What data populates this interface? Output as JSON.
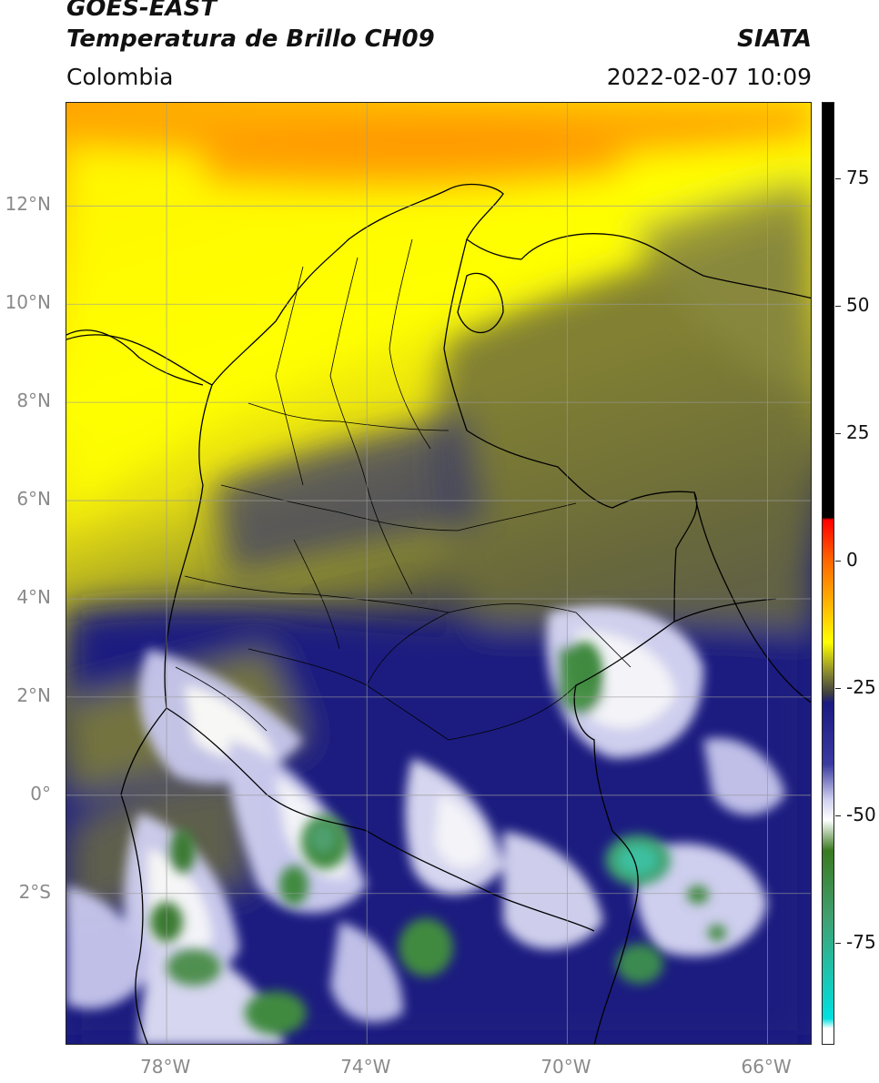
{
  "header": {
    "satellite": "GOES-EAST",
    "product": "Temperatura de Brillo CH09",
    "region": "Colombia",
    "agency": "SIATA",
    "datetime": "2022-02-07 10:09"
  },
  "map": {
    "lon_range": [
      -80,
      -65.1
    ],
    "lat_range": [
      -5.1,
      14.1
    ],
    "lat_ticks": [
      {
        "value": 12,
        "label": "12°N"
      },
      {
        "value": 10,
        "label": "10°N"
      },
      {
        "value": 8,
        "label": "8°N"
      },
      {
        "value": 6,
        "label": "6°N"
      },
      {
        "value": 4,
        "label": "4°N"
      },
      {
        "value": 2,
        "label": "2°N"
      },
      {
        "value": 0,
        "label": "0°"
      },
      {
        "value": -2,
        "label": "2°S"
      }
    ],
    "lon_ticks": [
      {
        "value": -78,
        "label": "78°W"
      },
      {
        "value": -74,
        "label": "74°W"
      },
      {
        "value": -70,
        "label": "70°W"
      },
      {
        "value": -66,
        "label": "66°W"
      }
    ],
    "gridlines": true,
    "grid_color": "#9a9a9a"
  },
  "colorbar": {
    "range": [
      -95,
      90
    ],
    "ticks": [
      {
        "value": 75,
        "label": "75"
      },
      {
        "value": 50,
        "label": "50"
      },
      {
        "value": 25,
        "label": "25"
      },
      {
        "value": 0,
        "label": "0"
      },
      {
        "value": -25,
        "label": "-25"
      },
      {
        "value": -50,
        "label": "-50"
      },
      {
        "value": -75,
        "label": "-75"
      }
    ],
    "stops": [
      {
        "value": 90,
        "color": "#000000"
      },
      {
        "value": 8.5,
        "color": "#000000"
      },
      {
        "value": 8,
        "color": "#ff0000"
      },
      {
        "value": 0,
        "color": "#ff6600"
      },
      {
        "value": -8,
        "color": "#ffb000"
      },
      {
        "value": -16,
        "color": "#ffff00"
      },
      {
        "value": -22,
        "color": "#8a8a30"
      },
      {
        "value": -26,
        "color": "#404040"
      },
      {
        "value": -28,
        "color": "#1a1a80"
      },
      {
        "value": -40,
        "color": "#3a3aa0"
      },
      {
        "value": -47,
        "color": "#d0d0f0"
      },
      {
        "value": -51,
        "color": "#ffffff"
      },
      {
        "value": -57,
        "color": "#3a7a20"
      },
      {
        "value": -70,
        "color": "#40a070"
      },
      {
        "value": -90,
        "color": "#00e0e0"
      },
      {
        "value": -92,
        "color": "#ffffff"
      },
      {
        "value": -95,
        "color": "#ffffff"
      }
    ]
  }
}
